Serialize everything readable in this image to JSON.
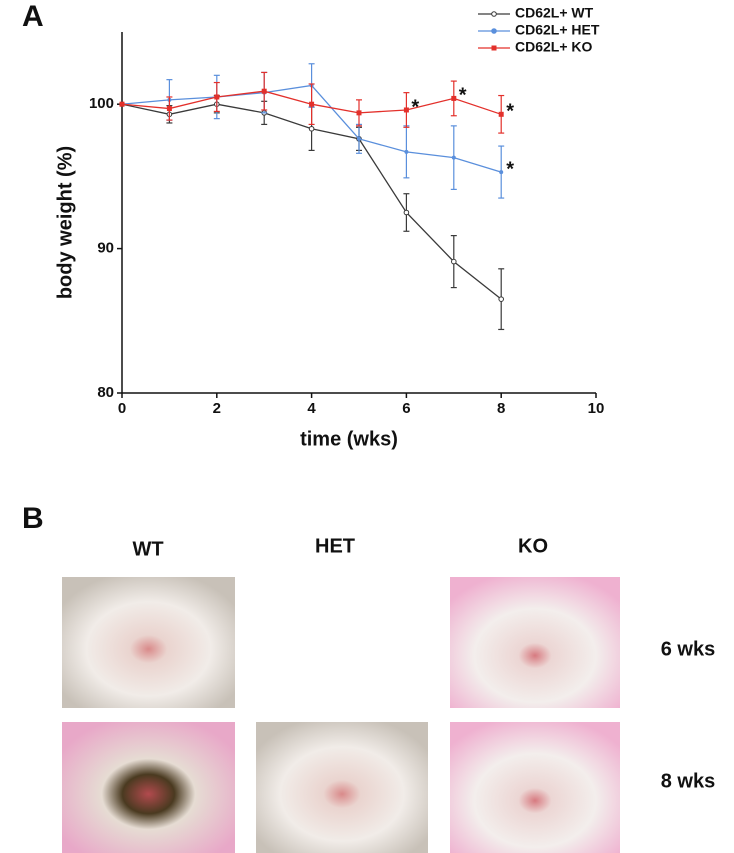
{
  "panel_labels": [
    "A",
    "B"
  ],
  "chart_data": {
    "type": "line",
    "xlabel": "time (wks)",
    "ylabel": "body weight (%)",
    "x": [
      0,
      1,
      2,
      3,
      4,
      5,
      6,
      7,
      8
    ],
    "series": [
      {
        "name": "CD62L+ WT",
        "color": "#3a3a3a",
        "values": [
          100,
          99.3,
          100,
          99.4,
          98.3,
          97.6,
          92.5,
          89.1,
          86.5
        ],
        "errors": [
          0,
          0.6,
          0.6,
          0.8,
          1.5,
          0.8,
          1.3,
          1.8,
          2.1
        ]
      },
      {
        "name": "CD62L+ HET",
        "color": "#5a8fdc",
        "values": [
          100,
          100.3,
          100.5,
          100.8,
          101.3,
          97.6,
          96.7,
          96.3,
          95.3
        ],
        "errors": [
          0,
          1.4,
          1.5,
          1.4,
          1.5,
          1.0,
          1.8,
          2.2,
          1.8
        ]
      },
      {
        "name": "CD62L+ KO",
        "color": "#e3302b",
        "values": [
          100,
          99.7,
          100.5,
          100.9,
          100,
          99.4,
          99.6,
          100.4,
          99.3
        ],
        "errors": [
          0,
          0.8,
          1.0,
          1.3,
          1.4,
          0.9,
          1.2,
          1.2,
          1.3
        ]
      }
    ],
    "annotations": [
      {
        "text": "*",
        "x": 6,
        "y": 99.6
      },
      {
        "text": "*",
        "x": 7,
        "y": 100.4
      },
      {
        "text": "*",
        "x": 8,
        "y": 99.3
      },
      {
        "text": "*",
        "x": 8,
        "y": 95.3
      }
    ],
    "xlim": [
      0,
      10
    ],
    "xticks": [
      0,
      2,
      4,
      6,
      8,
      10
    ],
    "ylim": [
      80,
      105
    ],
    "yticks": [
      80,
      90,
      100
    ],
    "legend": "upper right",
    "grid": false
  },
  "photo_panel": {
    "columns": [
      "WT",
      "HET",
      "KO"
    ],
    "rows": [
      "6 wks",
      "8 wks"
    ]
  }
}
